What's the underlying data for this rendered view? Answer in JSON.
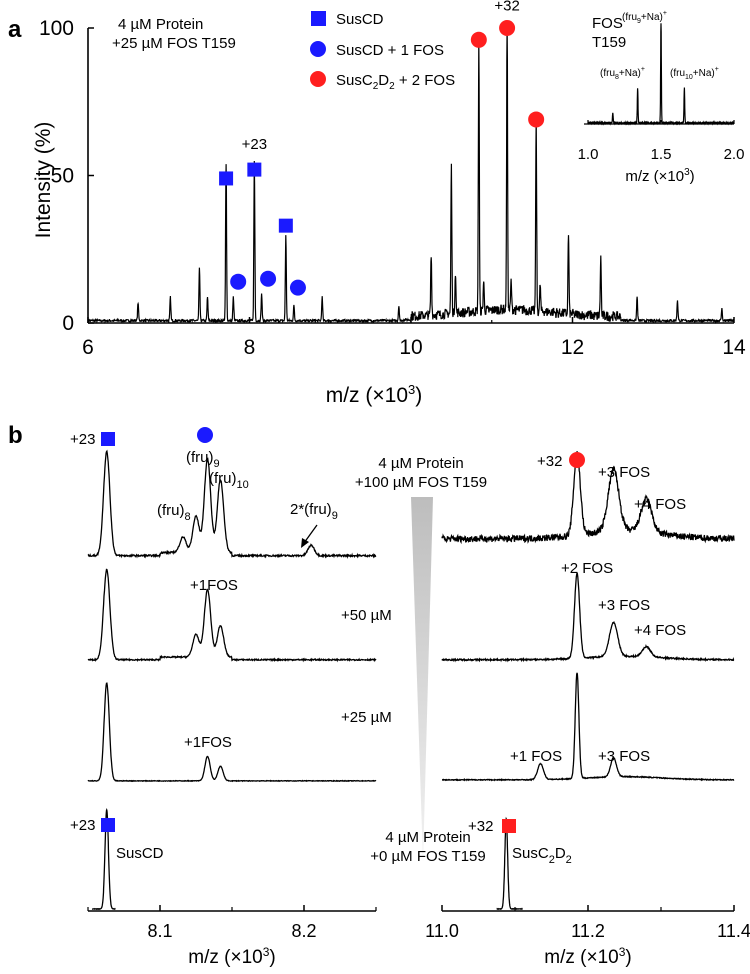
{
  "panels": {
    "a": "a",
    "b": "b"
  },
  "chart_data": [
    {
      "type": "line",
      "panel": "a",
      "xlabel": "m/z (×10",
      "xlabel_sup": "3",
      "xlabel_end": ")",
      "ylabel": "Intensity (%)",
      "xlim": [
        6,
        14
      ],
      "ylim": [
        0,
        100
      ],
      "xticks": [
        "6",
        "8",
        "10",
        "12",
        "14"
      ],
      "yticks": [
        "0",
        "50",
        "100"
      ],
      "ytick_values": [
        0,
        50,
        100
      ],
      "conditions": [
        "4 µM Protein",
        "+25 µM FOS T159"
      ],
      "legend": [
        {
          "label": "SusCD",
          "marker": "square",
          "color": "#1a1aff"
        },
        {
          "label": "SusCD + 1 FOS",
          "marker": "circle",
          "color": "#1a1aff"
        },
        {
          "label": "SusC",
          "sub1": "2",
          "mid": "D",
          "sub2": "2",
          "end": " + 2 FOS",
          "marker": "circle",
          "color": "#ff1f1f"
        }
      ],
      "peaks": [
        {
          "x": 7.71,
          "y": 53
        },
        {
          "x": 8.06,
          "y": 54
        },
        {
          "x": 8.45,
          "y": 29
        },
        {
          "x": 7.8,
          "y": 8
        },
        {
          "x": 8.15,
          "y": 9
        },
        {
          "x": 8.55,
          "y": 5
        },
        {
          "x": 7.38,
          "y": 18
        },
        {
          "x": 6.62,
          "y": 6
        },
        {
          "x": 7.02,
          "y": 8
        },
        {
          "x": 7.48,
          "y": 8
        },
        {
          "x": 8.9,
          "y": 8
        },
        {
          "x": 9.85,
          "y": 5
        },
        {
          "x": 10.25,
          "y": 20
        },
        {
          "x": 10.5,
          "y": 50
        },
        {
          "x": 10.55,
          "y": 14
        },
        {
          "x": 10.84,
          "y": 92
        },
        {
          "x": 10.9,
          "y": 10
        },
        {
          "x": 11.19,
          "y": 97
        },
        {
          "x": 11.24,
          "y": 10
        },
        {
          "x": 11.55,
          "y": 65
        },
        {
          "x": 11.6,
          "y": 9
        },
        {
          "x": 11.95,
          "y": 27
        },
        {
          "x": 12.35,
          "y": 20
        },
        {
          "x": 12.8,
          "y": 8
        },
        {
          "x": 13.3,
          "y": 7
        },
        {
          "x": 13.85,
          "y": 4
        }
      ],
      "markers": [
        {
          "x": 7.71,
          "y": 49,
          "shape": "square",
          "color": "#1a1aff"
        },
        {
          "x": 8.06,
          "y": 52,
          "shape": "square",
          "color": "#1a1aff"
        },
        {
          "x": 8.45,
          "y": 33,
          "shape": "square",
          "color": "#1a1aff"
        },
        {
          "x": 7.86,
          "y": 14,
          "shape": "circle",
          "color": "#1a1aff"
        },
        {
          "x": 8.23,
          "y": 15,
          "shape": "circle",
          "color": "#1a1aff"
        },
        {
          "x": 8.6,
          "y": 12,
          "shape": "circle",
          "color": "#1a1aff"
        },
        {
          "x": 10.84,
          "y": 96,
          "shape": "circle",
          "color": "#ff1f1f"
        },
        {
          "x": 11.19,
          "y": 100,
          "shape": "circle",
          "color": "#ff1f1f"
        },
        {
          "x": 11.55,
          "y": 69,
          "shape": "circle",
          "color": "#ff1f1f"
        }
      ],
      "annotations": [
        {
          "text": "+23",
          "x": 8.06,
          "y": 59
        },
        {
          "text": "+32",
          "x": 11.19,
          "y": 106
        }
      ],
      "inset": {
        "title": [
          "FOS",
          "T159"
        ],
        "xlabel": "m/z (×10",
        "xlabel_sup": "3",
        "xlabel_end": ")",
        "xlim": [
          1.0,
          2.0
        ],
        "xticks": [
          "1.0",
          "1.5",
          "2.0"
        ],
        "peaks": [
          {
            "x": 1.17,
            "y": 10,
            "label": ""
          },
          {
            "x": 1.34,
            "y": 35,
            "label": "(fru8+Na)+"
          },
          {
            "x": 1.5,
            "y": 100,
            "label": "(fru9+Na)+"
          },
          {
            "x": 1.66,
            "y": 35,
            "label": "(fru10+Na)+"
          }
        ]
      }
    },
    {
      "type": "line",
      "panel": "b-left",
      "xlabel": "m/z (×10",
      "xlabel_sup": "3",
      "xlabel_end": ")",
      "xlim": [
        8.05,
        8.25
      ],
      "xticks": [
        "8.1",
        "8.2"
      ],
      "traces": [
        {
          "label": "+100 µM",
          "peaks": [
            {
              "x": 8.063,
              "y": 100
            },
            {
              "x": 8.116,
              "y": 15
            },
            {
              "x": 8.125,
              "y": 35
            },
            {
              "x": 8.133,
              "y": 90
            },
            {
              "x": 8.142,
              "y": 70
            },
            {
              "x": 8.205,
              "y": 10
            }
          ]
        },
        {
          "label": "+50 µM",
          "peaks": [
            {
              "x": 8.063,
              "y": 100
            },
            {
              "x": 8.125,
              "y": 25
            },
            {
              "x": 8.133,
              "y": 75
            },
            {
              "x": 8.142,
              "y": 35
            }
          ]
        },
        {
          "label": "+25 µM",
          "peaks": [
            {
              "x": 8.063,
              "y": 100
            },
            {
              "x": 8.133,
              "y": 25
            },
            {
              "x": 8.142,
              "y": 15
            }
          ]
        },
        {
          "label": "+0 µM",
          "peaks": [
            {
              "x": 8.063,
              "y": 100
            }
          ]
        }
      ],
      "labels": [
        "(fru)",
        "(fru)",
        "(fru)",
        "2*(fru)",
        "+1FOS",
        "+1FOS",
        "SusCD",
        "+23",
        "+23"
      ]
    },
    {
      "type": "line",
      "panel": "b-right",
      "xlabel": "m/z (×10",
      "xlabel_sup": "3",
      "xlabel_end": ")",
      "xlim": [
        11.0,
        11.4
      ],
      "xticks": [
        "11.0",
        "11.2",
        "11.4"
      ],
      "traces": [
        {
          "label": "+100 µM",
          "peaks": [
            {
              "x": 11.185,
              "y": 100
            },
            {
              "x": 11.235,
              "y": 75
            },
            {
              "x": 11.28,
              "y": 40
            }
          ]
        },
        {
          "label": "+50 µM",
          "peaks": [
            {
              "x": 11.185,
              "y": 100
            },
            {
              "x": 11.235,
              "y": 40
            },
            {
              "x": 11.28,
              "y": 12
            }
          ]
        },
        {
          "label": "+25 µM",
          "peaks": [
            {
              "x": 11.135,
              "y": 15
            },
            {
              "x": 11.185,
              "y": 100
            },
            {
              "x": 11.235,
              "y": 18
            }
          ]
        },
        {
          "label": "+0 µM",
          "peaks": [
            {
              "x": 11.088,
              "y": 100
            }
          ]
        }
      ],
      "labels": [
        "+3 FOS",
        "+4 FOS",
        "+2 FOS",
        "+3 FOS",
        "+4 FOS",
        "+1 FOS",
        "+3 FOS",
        "+32",
        "+32"
      ]
    }
  ],
  "panel_b_text": {
    "top": [
      "4 µM Protein",
      "+100 µM FOS T159"
    ],
    "mid1": "+50 µM",
    "mid2": "+25 µM",
    "bottom": [
      "4 µM Protein",
      "+0 µM FOS T159"
    ],
    "susc2d2": {
      "a": "SusC",
      "b": "2",
      "c": "D",
      "d": "2"
    }
  },
  "colors": {
    "blue": "#1a1aff",
    "red": "#ff1f1f",
    "wedge": "#c8c8c8"
  }
}
